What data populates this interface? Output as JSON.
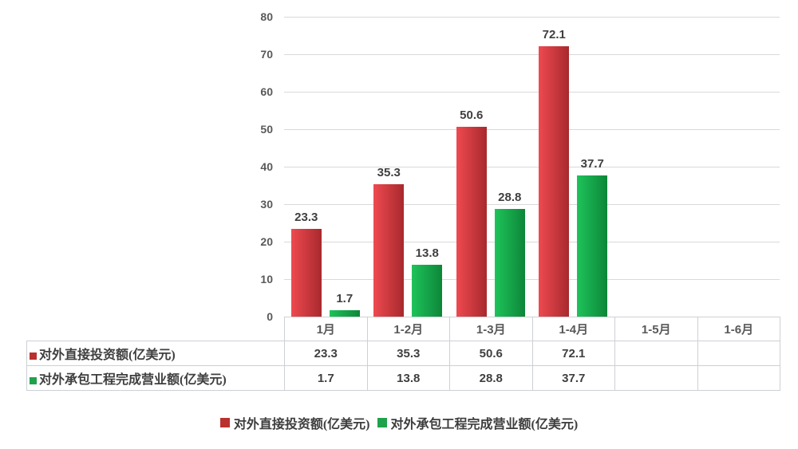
{
  "chart_data": {
    "type": "bar",
    "title": "",
    "categories": [
      "1月",
      "1-2月",
      "1-3月",
      "1-4月",
      "1-5月",
      "1-6月"
    ],
    "series": [
      {
        "name": "对外直接投资额(亿美元)",
        "values": [
          23.3,
          35.3,
          50.6,
          72.1,
          null,
          null
        ],
        "color_light": "#ee4a50",
        "color_dark": "#a8292d",
        "key_color": "#b9312f"
      },
      {
        "name": "对外承包工程完成营业额(亿美元)",
        "values": [
          1.7,
          13.8,
          28.8,
          37.7,
          null,
          null
        ],
        "color_light": "#1ec35a",
        "color_dark": "#0d8639",
        "key_color": "#1fa24b"
      }
    ],
    "ylim": [
      0,
      80
    ],
    "ytick_step": 10,
    "ytick_labels": [
      "0",
      "10",
      "20",
      "30",
      "40",
      "50",
      "60",
      "70",
      "80"
    ],
    "grid": true,
    "legend_position": "bottom",
    "show_data_table": true,
    "value_decimals": 1
  },
  "colors": {
    "gridline": "#d9d9d9",
    "table_border": "#ccd0d5",
    "axis_text": "#595959",
    "value_text": "#3f3f3f",
    "background": "#ffffff"
  }
}
